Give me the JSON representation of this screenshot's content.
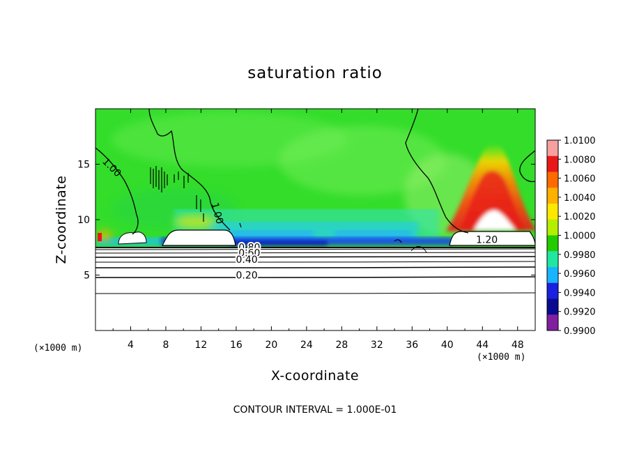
{
  "chart_data": {
    "type": "heatmap",
    "title": "saturation ratio",
    "xlabel": "X-coordinate",
    "ylabel": "Z-coordinate",
    "x_unit": "(×1000 m)",
    "y_unit": "(×1000 m)",
    "xlim": [
      0,
      50
    ],
    "ylim": [
      0,
      20
    ],
    "x_ticks": [
      4,
      8,
      12,
      16,
      20,
      24,
      28,
      32,
      36,
      40,
      44,
      48
    ],
    "y_ticks": [
      5,
      10,
      15
    ],
    "colorbar": {
      "levels": [
        "1.0100",
        "1.0080",
        "1.0060",
        "1.0040",
        "1.0020",
        "1.0000",
        "0.9980",
        "0.9960",
        "0.9940",
        "0.9920",
        "0.9900"
      ],
      "colors": [
        "#f6a0a0",
        "#e81818",
        "#ff6a00",
        "#ffb000",
        "#ffe800",
        "#b4ee00",
        "#22cc00",
        "#20e6a0",
        "#18b4ff",
        "#1a20e0",
        "#0a0a90",
        "#8020a0"
      ]
    },
    "contour_labels": [
      {
        "text": "1.00",
        "x": 1.6,
        "z": 14.5
      },
      {
        "text": "1.00",
        "x": 13.5,
        "z": 10.5
      },
      {
        "text": "1.20",
        "x": 44.5,
        "z": 7.9
      },
      {
        "text": "0.80",
        "x": 17.5,
        "z": 7.2
      },
      {
        "text": "0.60",
        "x": 17.5,
        "z": 6.7
      },
      {
        "text": "0.40",
        "x": 17.2,
        "z": 6.1
      },
      {
        "text": "0.20",
        "x": 17.2,
        "z": 4.7
      }
    ],
    "footer": "CONTOUR INTERVAL = 1.000E-01"
  }
}
